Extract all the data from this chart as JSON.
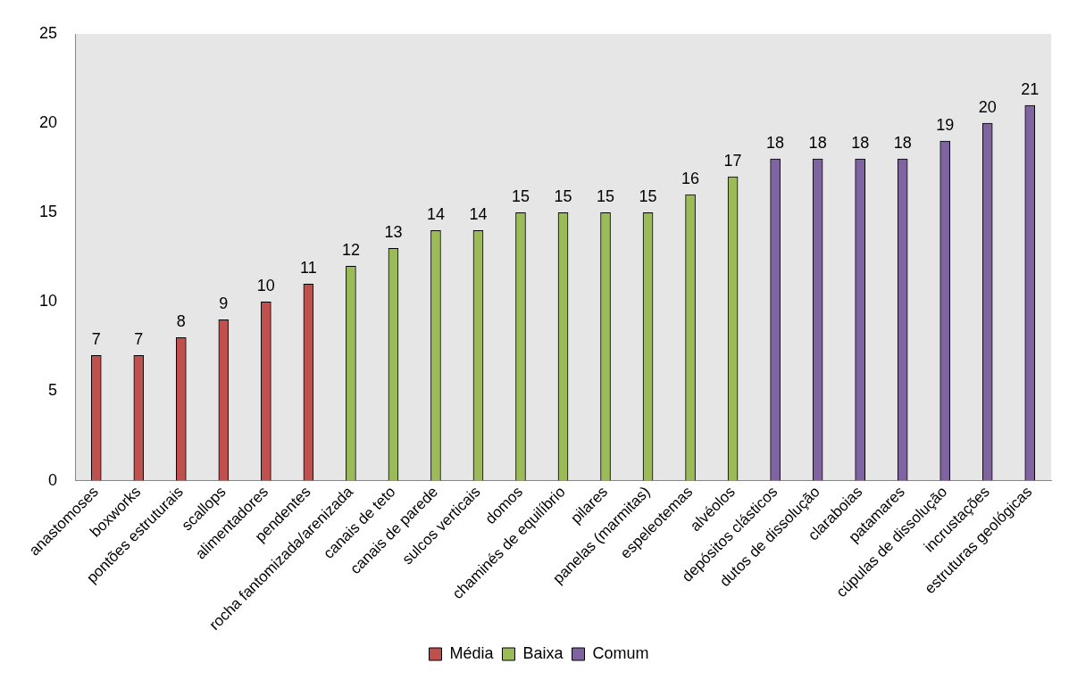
{
  "chart_data": {
    "type": "bar",
    "categories": [
      "anastomoses",
      "boxworks",
      "pontões estruturais",
      "scallops",
      "alimentadores",
      "pendentes",
      "rocha fantomizada/arenizada",
      "canais de teto",
      "canais de parede",
      "sulcos verticais",
      "domos",
      "chaminés de equilíbrio",
      "pilares",
      "panelas (marmitas)",
      "espeleotemas",
      "alvéolos",
      "depósitos clásticos",
      "dutos de dissolução",
      "claraboias",
      "patamares",
      "cúpulas de dissolução",
      "incrustações",
      "estruturas geológicas"
    ],
    "series": [
      {
        "name": "Média",
        "color": "#c0504d",
        "values": [
          7,
          7,
          8,
          9,
          10,
          11,
          null,
          null,
          null,
          null,
          null,
          null,
          null,
          null,
          null,
          null,
          null,
          null,
          null,
          null,
          null,
          null,
          null
        ]
      },
      {
        "name": "Baixa",
        "color": "#9bbb59",
        "values": [
          null,
          null,
          null,
          null,
          null,
          null,
          12,
          13,
          14,
          14,
          15,
          15,
          15,
          15,
          16,
          17,
          null,
          null,
          null,
          null,
          null,
          null,
          null
        ]
      },
      {
        "name": "Comum",
        "color": "#8064a2",
        "values": [
          null,
          null,
          null,
          null,
          null,
          null,
          null,
          null,
          null,
          null,
          null,
          null,
          null,
          null,
          null,
          null,
          18,
          18,
          18,
          18,
          19,
          20,
          21
        ]
      }
    ],
    "ylim": [
      0,
      25
    ],
    "yticks": [
      0,
      5,
      10,
      15,
      20,
      25
    ],
    "grid": false,
    "legend": "bottom",
    "data_labels": true
  }
}
